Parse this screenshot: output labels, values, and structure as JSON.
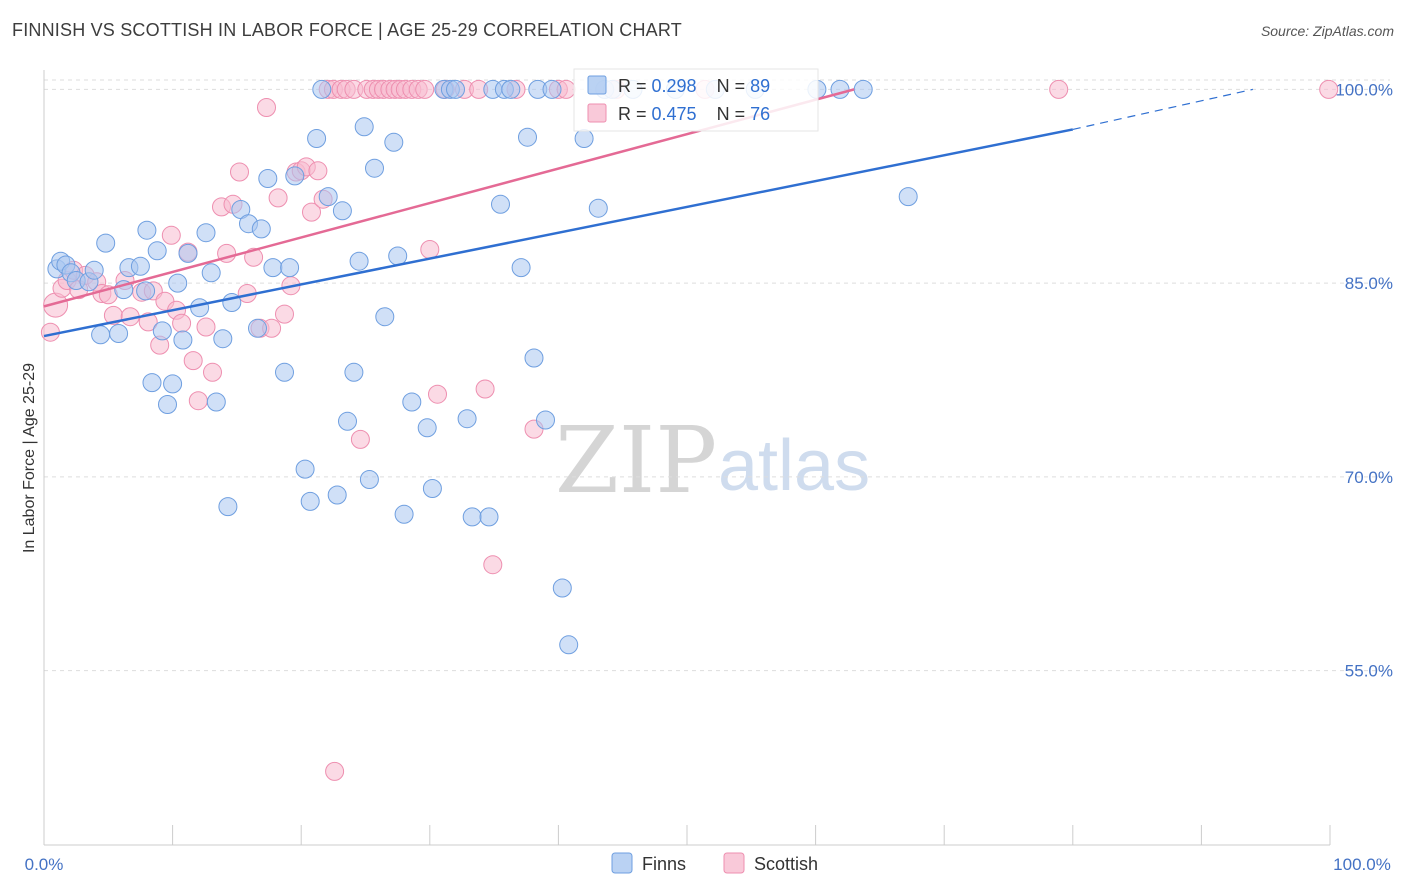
{
  "header": {
    "title": "FINNISH VS SCOTTISH IN LABOR FORCE | AGE 25-29 CORRELATION CHART",
    "source": "Source: ZipAtlas.com"
  },
  "watermark": {
    "zip": "ZIP",
    "atlas": "atlas"
  },
  "colors": {
    "finns_fill": "#a9c7f0",
    "finns_stroke": "#6f9fe0",
    "finns_line": "#2f6fd1",
    "scottish_fill": "#f7bcd0",
    "scottish_stroke": "#ee8fb0",
    "scottish_line": "#e46a95",
    "grid": "#dddddd",
    "tick_text": "#4472c4"
  },
  "chart_data": {
    "type": "scatter",
    "title": "FINNISH VS SCOTTISH IN LABOR FORCE | AGE 25-29 CORRELATION CHART",
    "xlabel": "",
    "ylabel": "In Labor Force | Age 25-29",
    "xlim": [
      0,
      100
    ],
    "ylim": [
      41.5,
      101.5
    ],
    "x_tick_labels": [
      "0.0%",
      "100.0%"
    ],
    "y_ticks": [
      55,
      70,
      85,
      100
    ],
    "y_tick_labels": [
      "55.0%",
      "70.0%",
      "85.0%",
      "100.0%"
    ],
    "legend_position": "top-center",
    "series": [
      {
        "name": "Finns",
        "R": "0.298",
        "N": "89",
        "trend": {
          "x": [
            0,
            80,
            94
          ],
          "y": [
            80.9,
            96.9,
            100
          ]
        },
        "points": [
          [
            1,
            86.1
          ],
          [
            1.3,
            86.7
          ],
          [
            1.7,
            86.4
          ],
          [
            2.1,
            85.8
          ],
          [
            2.5,
            85.2
          ],
          [
            3.5,
            85.1
          ],
          [
            3.9,
            86
          ],
          [
            4.4,
            81
          ],
          [
            4.8,
            88.1
          ],
          [
            5.8,
            81.1
          ],
          [
            6.2,
            84.5
          ],
          [
            6.6,
            86.2
          ],
          [
            7.5,
            86.3
          ],
          [
            7.9,
            84.4
          ],
          [
            8,
            89.1
          ],
          [
            8.4,
            77.3
          ],
          [
            8.8,
            87.5
          ],
          [
            9.2,
            81.3
          ],
          [
            9.6,
            75.6
          ],
          [
            10,
            77.2
          ],
          [
            10.4,
            85
          ],
          [
            10.8,
            80.6
          ],
          [
            11.2,
            87.3
          ],
          [
            12.1,
            83.1
          ],
          [
            12.6,
            88.9
          ],
          [
            13,
            85.8
          ],
          [
            13.4,
            75.8
          ],
          [
            13.9,
            80.7
          ],
          [
            14.3,
            67.7
          ],
          [
            14.6,
            83.5
          ],
          [
            15.3,
            90.7
          ],
          [
            15.9,
            89.6
          ],
          [
            16.9,
            89.2
          ],
          [
            16.6,
            81.5
          ],
          [
            17.4,
            93.1
          ],
          [
            17.8,
            86.2
          ],
          [
            18.7,
            78.1
          ],
          [
            19.1,
            86.2
          ],
          [
            19.5,
            93.3
          ],
          [
            20.3,
            70.6
          ],
          [
            20.7,
            68.1
          ],
          [
            21.2,
            96.2
          ],
          [
            21.6,
            100
          ],
          [
            22.1,
            91.7
          ],
          [
            22.8,
            68.6
          ],
          [
            23.2,
            90.6
          ],
          [
            23.6,
            74.3
          ],
          [
            24.1,
            78.1
          ],
          [
            24.5,
            86.7
          ],
          [
            24.9,
            97.1
          ],
          [
            25.3,
            69.8
          ],
          [
            25.7,
            93.9
          ],
          [
            26.5,
            82.4
          ],
          [
            27.2,
            95.9
          ],
          [
            27.5,
            87.1
          ],
          [
            28,
            67.1
          ],
          [
            28.6,
            75.8
          ],
          [
            29.8,
            73.8
          ],
          [
            30.2,
            69.1
          ],
          [
            31.1,
            100
          ],
          [
            31.6,
            100
          ],
          [
            32,
            100
          ],
          [
            32.9,
            74.5
          ],
          [
            33.3,
            66.9
          ],
          [
            34.6,
            66.9
          ],
          [
            34.9,
            100
          ],
          [
            35.5,
            91.1
          ],
          [
            35.8,
            100
          ],
          [
            36.3,
            100
          ],
          [
            37.1,
            86.2
          ],
          [
            37.6,
            96.3
          ],
          [
            38.1,
            79.2
          ],
          [
            38.4,
            100
          ],
          [
            39,
            74.4
          ],
          [
            39.5,
            100
          ],
          [
            40.3,
            61.4
          ],
          [
            40.8,
            57
          ],
          [
            42,
            96.2
          ],
          [
            43.1,
            90.8
          ],
          [
            43.6,
            100
          ],
          [
            44.2,
            100
          ],
          [
            45.8,
            100
          ],
          [
            49.1,
            100
          ],
          [
            52.2,
            100
          ],
          [
            55.3,
            100
          ],
          [
            60.1,
            100
          ],
          [
            61.9,
            100
          ],
          [
            63.7,
            100
          ],
          [
            67.2,
            91.7
          ]
        ]
      },
      {
        "name": "Scottish",
        "R": "0.475",
        "N": "76",
        "trend": {
          "x": [
            0,
            63
          ],
          "y": [
            83.2,
            100
          ]
        },
        "points": [
          [
            0.5,
            81.2
          ],
          [
            0.9,
            83.3
          ],
          [
            1.4,
            84.6
          ],
          [
            1.8,
            85.2
          ],
          [
            2.3,
            86
          ],
          [
            2.7,
            84.5
          ],
          [
            3.2,
            85.6
          ],
          [
            4.1,
            85.1
          ],
          [
            4.5,
            84.2
          ],
          [
            5,
            84.1
          ],
          [
            5.4,
            82.5
          ],
          [
            6.3,
            85.2
          ],
          [
            6.7,
            82.4
          ],
          [
            7.6,
            84.3
          ],
          [
            8.1,
            82
          ],
          [
            8.5,
            84.4
          ],
          [
            9,
            80.2
          ],
          [
            9.4,
            83.6
          ],
          [
            9.9,
            88.7
          ],
          [
            10.3,
            82.9
          ],
          [
            10.7,
            81.9
          ],
          [
            11.2,
            87.4
          ],
          [
            11.6,
            79
          ],
          [
            12,
            75.9
          ],
          [
            12.6,
            81.6
          ],
          [
            13.1,
            78.1
          ],
          [
            13.8,
            90.9
          ],
          [
            14.2,
            87.3
          ],
          [
            14.7,
            91.1
          ],
          [
            15.2,
            93.6
          ],
          [
            15.8,
            84.2
          ],
          [
            16.3,
            87
          ],
          [
            16.8,
            81.5
          ],
          [
            17.3,
            98.6
          ],
          [
            17.7,
            81.5
          ],
          [
            18.2,
            91.6
          ],
          [
            18.7,
            82.6
          ],
          [
            19.2,
            84.8
          ],
          [
            19.6,
            93.6
          ],
          [
            20,
            93.7
          ],
          [
            20.4,
            94
          ],
          [
            20.8,
            90.5
          ],
          [
            21.3,
            93.7
          ],
          [
            21.7,
            91.5
          ],
          [
            22.1,
            100
          ],
          [
            22.5,
            100
          ],
          [
            23.1,
            100
          ],
          [
            23.5,
            100
          ],
          [
            24.1,
            100
          ],
          [
            24.6,
            72.9
          ],
          [
            25.1,
            100
          ],
          [
            25.6,
            100
          ],
          [
            26,
            100
          ],
          [
            26.4,
            100
          ],
          [
            26.9,
            100
          ],
          [
            27.3,
            100
          ],
          [
            27.7,
            100
          ],
          [
            28.1,
            100
          ],
          [
            28.6,
            100
          ],
          [
            29.1,
            100
          ],
          [
            29.6,
            100
          ],
          [
            30,
            87.6
          ],
          [
            30.6,
            76.4
          ],
          [
            31.2,
            100
          ],
          [
            32.7,
            100
          ],
          [
            33.8,
            100
          ],
          [
            34.3,
            76.8
          ],
          [
            34.9,
            63.2
          ],
          [
            36.7,
            100
          ],
          [
            38.1,
            73.7
          ],
          [
            40,
            100
          ],
          [
            40.6,
            100
          ],
          [
            44.5,
            100
          ],
          [
            51.4,
            100
          ],
          [
            78.9,
            100
          ],
          [
            99.9,
            100
          ]
        ],
        "outliers": [
          [
            22.6,
            47.2
          ]
        ]
      }
    ]
  }
}
